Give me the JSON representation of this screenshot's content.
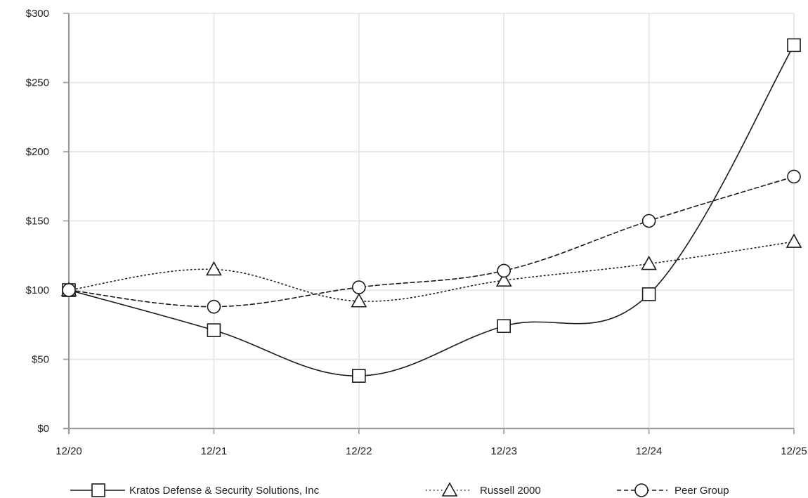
{
  "chart_data": {
    "type": "line",
    "title": "",
    "xlabel": "",
    "ylabel": "",
    "x": [
      "12/20",
      "12/21",
      "12/22",
      "12/23",
      "12/24",
      "12/25"
    ],
    "ylim": [
      0,
      300
    ],
    "yticks": [
      0,
      50,
      100,
      150,
      200,
      250,
      300
    ],
    "ytick_labels": [
      "$0",
      "$50",
      "$100",
      "$150",
      "$200",
      "$250",
      "$300"
    ],
    "grid": true,
    "legend_position": "bottom",
    "series": [
      {
        "name": "Kratos Defense & Security Solutions, Inc",
        "values": [
          100,
          71,
          38,
          74,
          97,
          277
        ],
        "marker": "square",
        "line_style": "solid",
        "color": "#1a1a1a"
      },
      {
        "name": "Russell 2000",
        "values": [
          100,
          115,
          92,
          107,
          119,
          135
        ],
        "marker": "triangle",
        "line_style": "dotted",
        "color": "#1a1a1a"
      },
      {
        "name": "Peer Group",
        "values": [
          100,
          88,
          102,
          114,
          150,
          182
        ],
        "marker": "circle",
        "line_style": "dashed",
        "color": "#1a1a1a"
      }
    ],
    "colors": {
      "grid": "#e3e3e3",
      "axis": "#9a9a9a",
      "text": "#222222",
      "background": "#ffffff"
    }
  }
}
